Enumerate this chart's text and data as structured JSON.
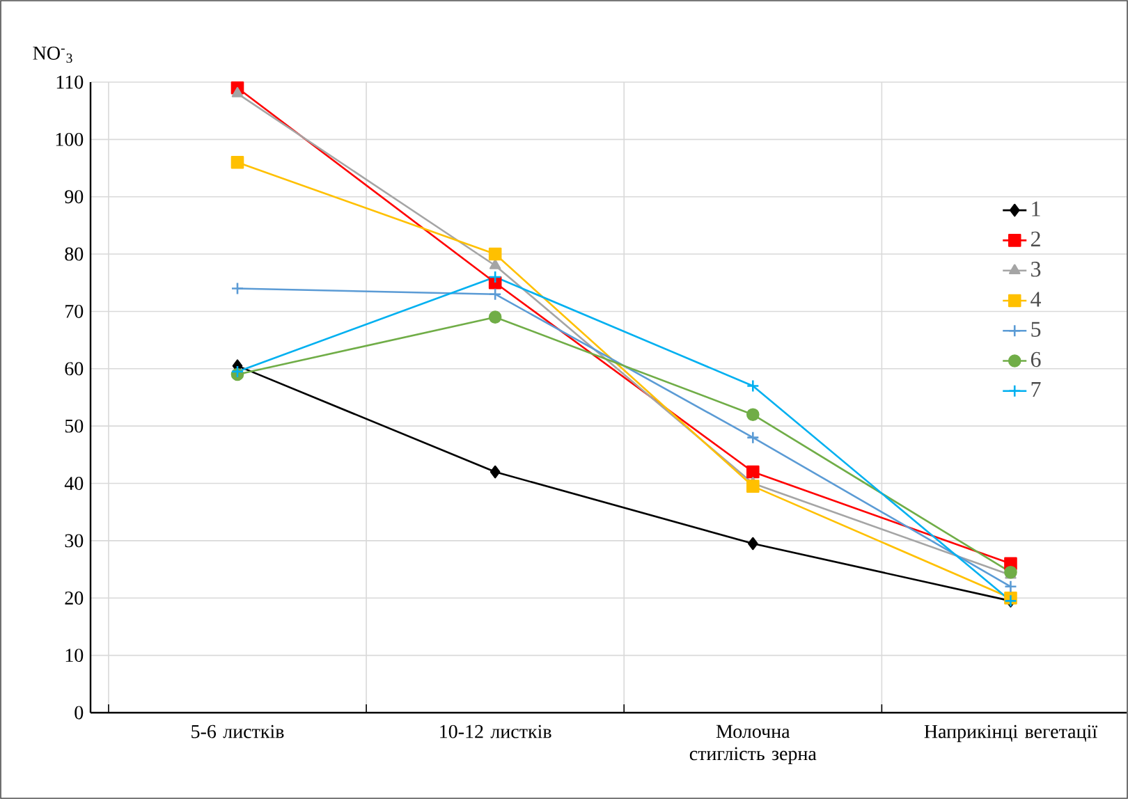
{
  "chart_data": {
    "type": "line",
    "ylabel": "NO$^{-}$$_{3}$",
    "categories": [
      "5-6 листків",
      "10-12 листків",
      "Молочна стиглість зерна",
      "Наприкінці вегетації"
    ],
    "series": [
      {
        "name": "1",
        "color": "#000000",
        "marker": "diamond",
        "values": [
          60.5,
          42,
          29.5,
          19.5
        ]
      },
      {
        "name": "2",
        "color": "#ff0000",
        "marker": "square",
        "values": [
          109,
          75,
          42,
          26
        ]
      },
      {
        "name": "3",
        "color": "#a5a5a5",
        "marker": "triangle",
        "values": [
          108,
          78,
          40,
          24
        ]
      },
      {
        "name": "4",
        "color": "#ffc000",
        "marker": "square",
        "values": [
          96,
          80,
          39.5,
          20
        ]
      },
      {
        "name": "5",
        "color": "#5b9bd5",
        "marker": "cross",
        "values": [
          74,
          73,
          48,
          22
        ]
      },
      {
        "name": "6",
        "color": "#70ad47",
        "marker": "circle",
        "values": [
          59,
          69,
          52,
          24.5
        ]
      },
      {
        "name": "7",
        "color": "#00b0f0",
        "marker": "cross",
        "values": [
          59.5,
          76,
          57,
          19.5
        ]
      }
    ],
    "ylim": [
      0,
      110
    ],
    "yticks": [
      0,
      10,
      20,
      30,
      40,
      50,
      60,
      70,
      80,
      90,
      100,
      110
    ],
    "grid": true,
    "legend": "right"
  }
}
